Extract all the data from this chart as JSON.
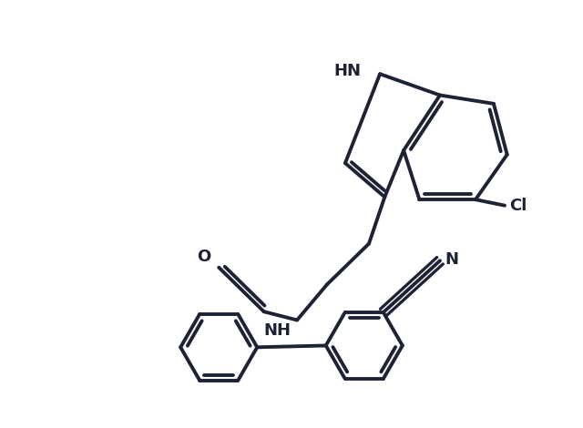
{
  "bg_color": "#ffffff",
  "line_color": "#1e2235",
  "line_width": 2.8,
  "figsize": [
    6.4,
    4.7
  ],
  "dpi": 100,
  "font_size": 13,
  "font_weight": "bold",
  "xlim": [
    -1,
    11
  ],
  "ylim": [
    -0.5,
    9
  ]
}
